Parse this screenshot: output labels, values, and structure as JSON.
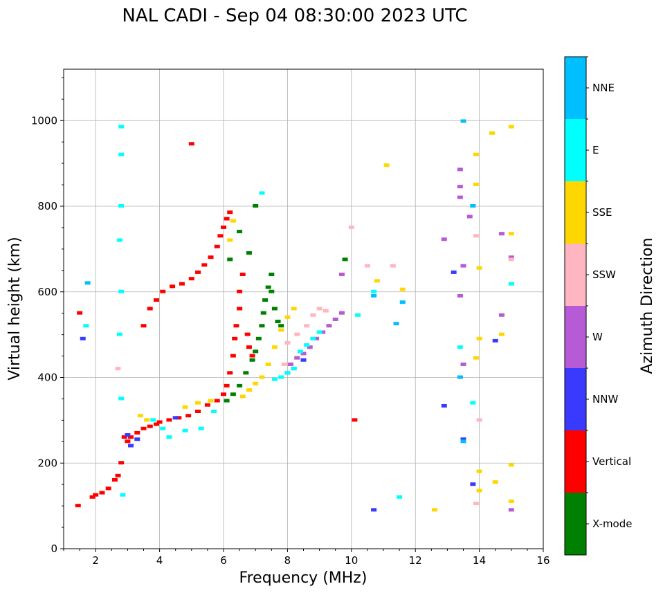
{
  "chart_data": {
    "type": "scatter",
    "title": "NAL CADI - Sep 04 08:30:00 2023 UTC",
    "xlabel": "Frequency (MHz)",
    "ylabel": "Virtual height (km)",
    "xlim": [
      1,
      16
    ],
    "ylim": [
      0,
      1120
    ],
    "xticks": [
      2,
      4,
      6,
      8,
      10,
      12,
      14,
      16
    ],
    "yticks": [
      0,
      200,
      400,
      600,
      800,
      1000
    ],
    "grid": true,
    "colorbar": {
      "title": "Azimuth Direction",
      "categories": [
        "X-mode",
        "Vertical",
        "NNW",
        "W",
        "SSW",
        "SSE",
        "E",
        "NNE"
      ],
      "colors": [
        "#008000",
        "#ff0000",
        "#3a3aff",
        "#b65ad6",
        "#ffb6c1",
        "#ffd700",
        "#00ffff",
        "#00bfff"
      ]
    },
    "series": [
      {
        "name": "Vertical",
        "points": [
          [
            1.45,
            100
          ],
          [
            1.5,
            550
          ],
          [
            1.9,
            120
          ],
          [
            2.0,
            125
          ],
          [
            2.2,
            130
          ],
          [
            2.4,
            140
          ],
          [
            2.6,
            160
          ],
          [
            2.7,
            170
          ],
          [
            2.8,
            200
          ],
          [
            2.9,
            260
          ],
          [
            3.0,
            250
          ],
          [
            3.1,
            260
          ],
          [
            3.3,
            270
          ],
          [
            3.5,
            280
          ],
          [
            3.7,
            285
          ],
          [
            3.9,
            290
          ],
          [
            4.0,
            295
          ],
          [
            4.3,
            300
          ],
          [
            4.6,
            305
          ],
          [
            4.9,
            310
          ],
          [
            5.2,
            320
          ],
          [
            5.5,
            335
          ],
          [
            5.8,
            345
          ],
          [
            6.0,
            360
          ],
          [
            6.1,
            380
          ],
          [
            6.2,
            410
          ],
          [
            6.3,
            450
          ],
          [
            6.35,
            490
          ],
          [
            6.4,
            520
          ],
          [
            6.5,
            560
          ],
          [
            6.5,
            600
          ],
          [
            6.6,
            640
          ],
          [
            6.75,
            500
          ],
          [
            6.8,
            470
          ],
          [
            6.9,
            450
          ],
          [
            3.5,
            520
          ],
          [
            3.7,
            560
          ],
          [
            3.9,
            580
          ],
          [
            4.1,
            600
          ],
          [
            4.4,
            612
          ],
          [
            4.7,
            618
          ],
          [
            5.0,
            630
          ],
          [
            5.2,
            645
          ],
          [
            5.4,
            662
          ],
          [
            5.6,
            680
          ],
          [
            5.8,
            705
          ],
          [
            5.9,
            730
          ],
          [
            6.0,
            750
          ],
          [
            6.1,
            770
          ],
          [
            6.2,
            785
          ],
          [
            5.0,
            945
          ],
          [
            10.1,
            300
          ]
        ]
      },
      {
        "name": "X-mode",
        "points": [
          [
            6.1,
            345
          ],
          [
            6.3,
            360
          ],
          [
            6.5,
            380
          ],
          [
            6.7,
            410
          ],
          [
            6.9,
            440
          ],
          [
            7.0,
            460
          ],
          [
            7.1,
            490
          ],
          [
            7.2,
            520
          ],
          [
            7.25,
            550
          ],
          [
            7.3,
            580
          ],
          [
            7.4,
            610
          ],
          [
            7.5,
            640
          ],
          [
            7.5,
            600
          ],
          [
            7.6,
            560
          ],
          [
            7.7,
            530
          ],
          [
            7.8,
            520
          ],
          [
            6.8,
            690
          ],
          [
            6.5,
            740
          ],
          [
            6.2,
            675
          ],
          [
            9.8,
            675
          ],
          [
            7.0,
            800
          ]
        ]
      },
      {
        "name": "NNW",
        "points": [
          [
            1.6,
            490
          ],
          [
            3.0,
            265
          ],
          [
            3.1,
            240
          ],
          [
            3.3,
            255
          ],
          [
            4.5,
            305
          ],
          [
            8.0,
            410
          ],
          [
            8.2,
            420
          ],
          [
            8.5,
            440
          ],
          [
            12.9,
            333
          ],
          [
            13.5,
            255
          ],
          [
            13.8,
            150
          ],
          [
            14.5,
            485
          ],
          [
            10.7,
            90
          ],
          [
            13.2,
            645
          ]
        ]
      },
      {
        "name": "W",
        "points": [
          [
            8.1,
            430
          ],
          [
            8.3,
            445
          ],
          [
            8.5,
            455
          ],
          [
            8.7,
            470
          ],
          [
            8.9,
            490
          ],
          [
            9.1,
            505
          ],
          [
            9.3,
            520
          ],
          [
            9.5,
            535
          ],
          [
            9.7,
            550
          ],
          [
            13.4,
            400
          ],
          [
            13.5,
            430
          ],
          [
            13.4,
            885
          ],
          [
            13.4,
            845
          ],
          [
            13.4,
            820
          ],
          [
            13.5,
            660
          ],
          [
            13.4,
            590
          ],
          [
            14.7,
            735
          ],
          [
            15.0,
            680
          ],
          [
            15.0,
            90
          ],
          [
            9.7,
            640
          ],
          [
            13.7,
            775
          ],
          [
            14.7,
            545
          ],
          [
            12.9,
            722
          ]
        ]
      },
      {
        "name": "SSW",
        "points": [
          [
            2.7,
            420
          ],
          [
            7.9,
            430
          ],
          [
            8.0,
            480
          ],
          [
            8.3,
            500
          ],
          [
            8.6,
            520
          ],
          [
            8.8,
            545
          ],
          [
            9.0,
            560
          ],
          [
            9.2,
            555
          ],
          [
            10.0,
            750
          ],
          [
            13.9,
            730
          ],
          [
            14.0,
            300
          ],
          [
            13.9,
            105
          ],
          [
            15.0,
            675
          ],
          [
            10.5,
            660
          ],
          [
            11.3,
            660
          ]
        ]
      },
      {
        "name": "SSE",
        "points": [
          [
            3.4,
            310
          ],
          [
            3.6,
            300
          ],
          [
            4.8,
            330
          ],
          [
            5.2,
            340
          ],
          [
            5.6,
            345
          ],
          [
            6.6,
            355
          ],
          [
            6.8,
            370
          ],
          [
            7.0,
            385
          ],
          [
            7.2,
            400
          ],
          [
            7.4,
            430
          ],
          [
            7.6,
            470
          ],
          [
            7.8,
            510
          ],
          [
            8.0,
            540
          ],
          [
            8.2,
            560
          ],
          [
            6.2,
            720
          ],
          [
            6.3,
            765
          ],
          [
            12.6,
            90
          ],
          [
            13.9,
            920
          ],
          [
            14.0,
            655
          ],
          [
            14.0,
            490
          ],
          [
            13.9,
            445
          ],
          [
            14.0,
            180
          ],
          [
            14.0,
            135
          ],
          [
            14.5,
            155
          ],
          [
            15.0,
            195
          ],
          [
            15.0,
            110
          ],
          [
            15.0,
            985
          ],
          [
            14.4,
            970
          ],
          [
            15.0,
            735
          ],
          [
            14.7,
            500
          ],
          [
            11.1,
            895
          ],
          [
            10.8,
            625
          ],
          [
            11.6,
            605
          ],
          [
            13.9,
            850
          ]
        ]
      },
      {
        "name": "E",
        "points": [
          [
            1.7,
            520
          ],
          [
            2.8,
            985
          ],
          [
            2.8,
            920
          ],
          [
            2.8,
            800
          ],
          [
            2.75,
            720
          ],
          [
            2.8,
            600
          ],
          [
            2.75,
            500
          ],
          [
            2.8,
            350
          ],
          [
            2.85,
            125
          ],
          [
            3.8,
            300
          ],
          [
            4.1,
            280
          ],
          [
            4.3,
            260
          ],
          [
            4.8,
            275
          ],
          [
            5.3,
            280
          ],
          [
            5.7,
            320
          ],
          [
            7.6,
            395
          ],
          [
            7.8,
            400
          ],
          [
            8.0,
            410
          ],
          [
            8.2,
            420
          ],
          [
            8.4,
            460
          ],
          [
            8.6,
            475
          ],
          [
            8.8,
            490
          ],
          [
            9.0,
            505
          ],
          [
            11.5,
            120
          ],
          [
            13.4,
            470
          ],
          [
            13.8,
            340
          ],
          [
            15.0,
            618
          ],
          [
            10.7,
            600
          ],
          [
            10.2,
            545
          ],
          [
            7.2,
            830
          ]
        ]
      },
      {
        "name": "NNE",
        "points": [
          [
            1.75,
            620
          ],
          [
            13.5,
            998
          ],
          [
            13.8,
            800
          ],
          [
            13.4,
            400
          ],
          [
            13.5,
            250
          ],
          [
            10.7,
            590
          ],
          [
            11.6,
            575
          ],
          [
            11.4,
            525
          ]
        ]
      }
    ]
  }
}
